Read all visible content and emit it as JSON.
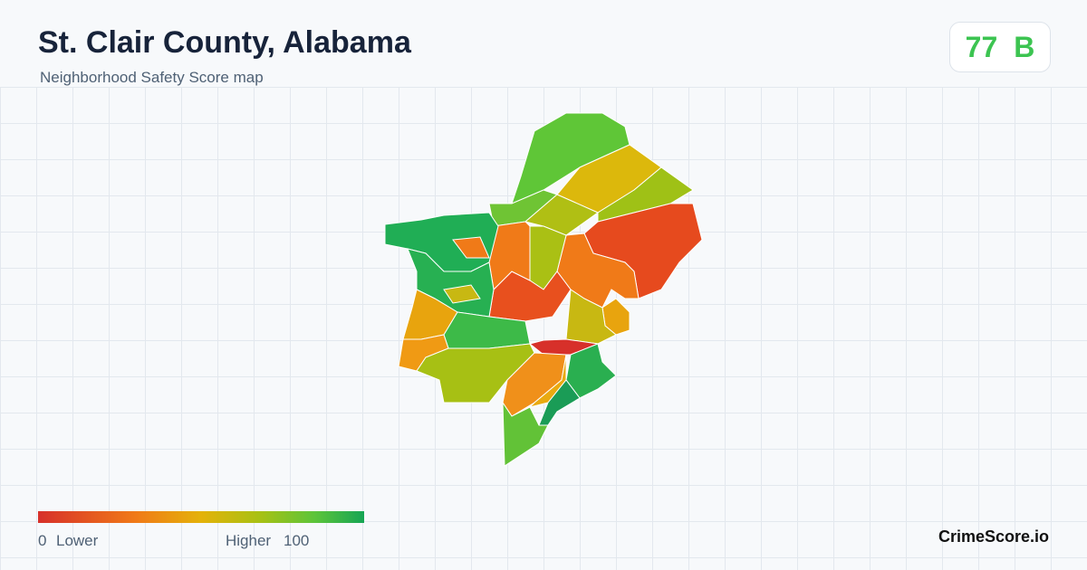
{
  "header": {
    "title": "St. Clair County, Alabama",
    "subtitle": "Neighborhood Safety Score map"
  },
  "score": {
    "value": 77,
    "grade": "B"
  },
  "legend": {
    "min": 0,
    "min_label": "Lower",
    "max_label": "Higher",
    "max": 100
  },
  "brand": "CrimeScore.io"
}
